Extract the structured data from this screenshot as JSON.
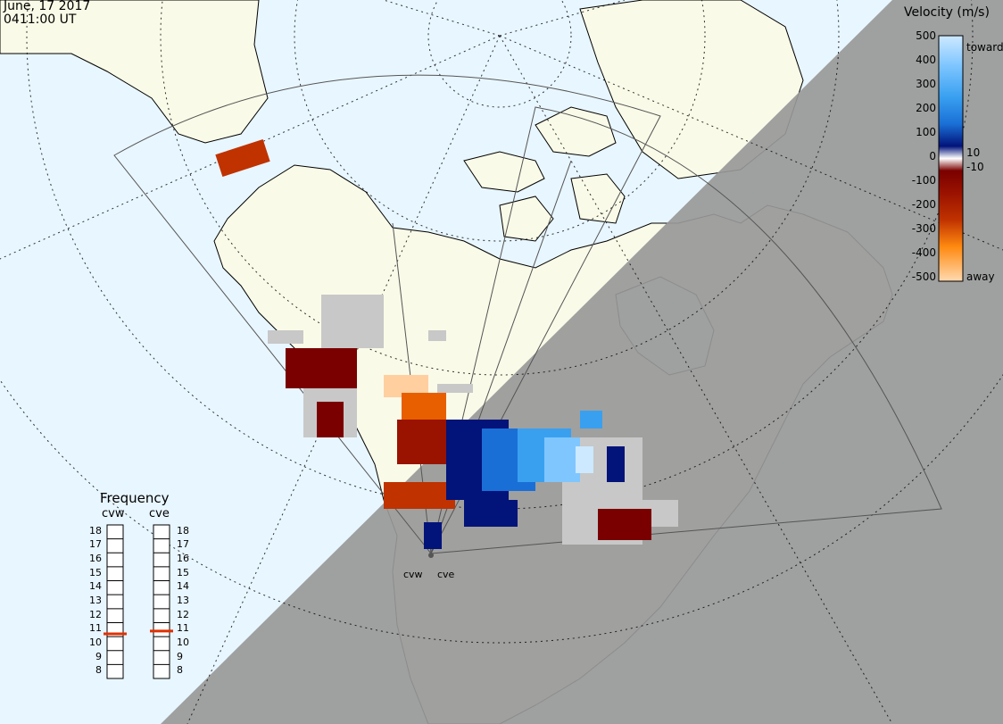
{
  "header": {
    "date": "June, 17 2017",
    "time": "0411:00 UT"
  },
  "colorbar": {
    "title": "Velocity (m/s)",
    "ticks": [
      "500",
      "400",
      "300",
      "200",
      "100",
      "10",
      "0",
      "-10",
      "-100",
      "-200",
      "-300",
      "-400",
      "-500"
    ],
    "toward_label": "toward",
    "away_label": "away",
    "colors": [
      "#cde9ff",
      "#7fc6ff",
      "#39a0f0",
      "#1a6fd6",
      "#0a3fa8",
      "#02137a",
      "#ffffff",
      "#7a0000",
      "#9a1200",
      "#c03200",
      "#e85f00",
      "#ff9a2a",
      "#ffcfa0"
    ]
  },
  "frequency": {
    "title": "Frequency",
    "radars": [
      "cvw",
      "cve"
    ],
    "scale": [
      "18",
      "17",
      "16",
      "15",
      "14",
      "13",
      "12",
      "11",
      "10",
      "9",
      "8"
    ],
    "cvw_mhz": 10.7,
    "cve_mhz": 10.9,
    "marker_color": "#e03000"
  },
  "sites": [
    "cvw",
    "cve"
  ],
  "map": {
    "ocean_color": "#e8f6ff",
    "land_color": "#fafae8",
    "night_color": "#989898",
    "ground_scatter_color": "#c8c8c8"
  }
}
